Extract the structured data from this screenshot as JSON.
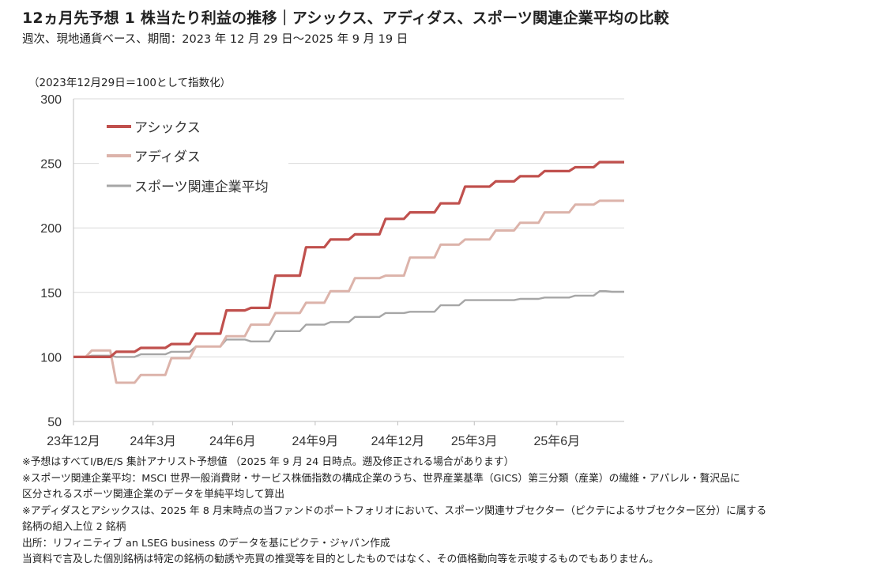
{
  "header": {
    "title": "12ヵ月先予想 1 株当たり利益の推移｜アシックス、アディダス、スポーツ関連企業平均の比較",
    "subtitle": "週次、現地通貨ベース、期間：2023 年 12 月 29 日～2025 年 9 月 19 日"
  },
  "chart_data": {
    "type": "line",
    "title": "12ヵ月先予想 1 株当たり利益の推移｜アシックス、アディダス、スポーツ関連企業平均の比較",
    "ylabel": "（2023年12月29日＝100として指数化）",
    "xlabel": "",
    "ylim": [
      50,
      300
    ],
    "yticks": [
      50,
      100,
      150,
      200,
      250,
      300
    ],
    "x_start": "2023-12-29",
    "x_end": "2025-09-19",
    "x_frequency": "weekly",
    "xtick_labels": [
      "23年12月",
      "24年3月",
      "24年6月",
      "24年9月",
      "24年12月",
      "25年3月",
      "25年6月"
    ],
    "grid": "horizontal",
    "legend_position": "top-left",
    "series": [
      {
        "name": "アシックス",
        "color": "#c0504d",
        "values": [
          100,
          100,
          100,
          100,
          100,
          100,
          100,
          104,
          104,
          104,
          104,
          107,
          107,
          107,
          107,
          107,
          110,
          110,
          110,
          110,
          118,
          118,
          118,
          118,
          118,
          136,
          136,
          136,
          136,
          138,
          138,
          138,
          138,
          163,
          163,
          163,
          163,
          163,
          185,
          185,
          185,
          185,
          191,
          191,
          191,
          191,
          195,
          195,
          195,
          195,
          195,
          207,
          207,
          207,
          207,
          212,
          212,
          212,
          212,
          212,
          219,
          219,
          219,
          219,
          232,
          232,
          232,
          232,
          232,
          236,
          236,
          236,
          236,
          240,
          240,
          240,
          240,
          244,
          244,
          244,
          244,
          244,
          247,
          247,
          247,
          247,
          251,
          251,
          251,
          251,
          251
        ]
      },
      {
        "name": "アディダス",
        "color": "#dcb3aa",
        "values": [
          100,
          100,
          100,
          105,
          105,
          105,
          105,
          80,
          80,
          80,
          80,
          86,
          86,
          86,
          86,
          86,
          99,
          99,
          99,
          99,
          108,
          108,
          108,
          108,
          108,
          116,
          116,
          116,
          116,
          125,
          125,
          125,
          125,
          134,
          134,
          134,
          134,
          134,
          142,
          142,
          142,
          142,
          151,
          151,
          151,
          151,
          161,
          161,
          161,
          161,
          161,
          163,
          163,
          163,
          163,
          177,
          177,
          177,
          177,
          177,
          187,
          187,
          187,
          187,
          191,
          191,
          191,
          191,
          191,
          198,
          198,
          198,
          198,
          204,
          204,
          204,
          204,
          212,
          212,
          212,
          212,
          212,
          218,
          218,
          218,
          218,
          221,
          221,
          221,
          221,
          221
        ]
      },
      {
        "name": "スポーツ関連企業平均",
        "color": "#a6a6a6",
        "values": [
          100,
          100,
          100,
          101,
          101,
          101,
          101,
          100,
          100,
          100,
          100,
          102,
          102,
          102,
          102,
          102,
          104,
          104,
          104,
          104,
          108,
          108,
          108,
          108,
          108,
          113.5,
          113.5,
          113.5,
          113.5,
          112,
          112,
          112,
          112,
          120,
          120,
          120,
          120,
          120,
          125,
          125,
          125,
          125,
          127,
          127,
          127,
          127,
          131,
          131,
          131,
          131,
          131,
          134,
          134,
          134,
          134,
          135,
          135,
          135,
          135,
          135,
          140,
          140,
          140,
          140,
          144,
          144,
          144,
          144,
          144,
          144,
          144,
          144,
          144,
          145,
          145,
          145,
          145,
          146,
          146,
          146,
          146,
          146,
          147.5,
          147.5,
          147.5,
          147.5,
          151,
          151,
          150.5,
          150.5,
          150.5
        ]
      }
    ]
  },
  "footnotes": [
    "※予想はすべてI/B/E/S 集計アナリスト予想値 （2025 年 9 月 24 日時点。遡及修正される場合があります）",
    "※スポーツ関連企業平均：MSCI 世界一般消費財・サービス株価指数の構成企業のうち、世界産業基準（GICS）第三分類（産業）の繊維・アパレル・贅沢品に",
    "区分されるスポーツ関連企業のデータを単純平均して算出",
    "※アディダスとアシックスは、2025 年 8 月末時点の当ファンドのポートフォリオにおいて、スポーツ関連サブセクター（ピクテによるサブセクター区分）に属する",
    "銘柄の組入上位 2 銘柄",
    "出所：リフィニティブ an LSEG business のデータを基にピクテ・ジャパン作成",
    "当資料で言及した個別銘柄は特定の銘柄の勧誘や売買の推奨等を目的としたものではなく、その価格動向等を示唆するものでもありません。"
  ]
}
